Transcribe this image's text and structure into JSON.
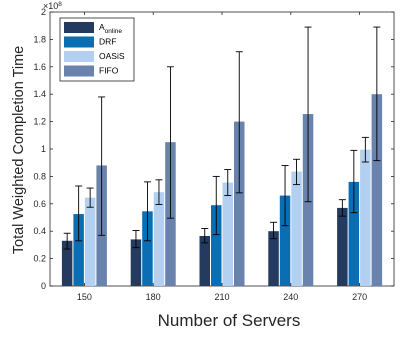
{
  "chart_data": {
    "type": "bar",
    "xlabel": "Number of Servers",
    "ylabel": "Total Weighted Completion Time",
    "ylim": [
      0,
      2
    ],
    "y_ticks": [
      "0",
      "0.2",
      "0.4",
      "0.6",
      "0.8",
      "1",
      "1.2",
      "1.4",
      "1.6",
      "1.8",
      "2"
    ],
    "y_exponent": {
      "base": "×10",
      "power": "8"
    },
    "categories": [
      "150",
      "180",
      "210",
      "240",
      "270"
    ],
    "legend_position": "top-left",
    "grid": false,
    "series": [
      {
        "name": "A",
        "name_subscript": "online",
        "color": "#243a5e",
        "values": [
          0.33,
          0.34,
          0.365,
          0.4,
          0.57
        ],
        "err_low": [
          0.27,
          0.28,
          0.315,
          0.345,
          0.51
        ],
        "err_high": [
          0.385,
          0.405,
          0.42,
          0.465,
          0.63
        ]
      },
      {
        "name": "DRF",
        "color": "#0a6eb4",
        "values": [
          0.525,
          0.545,
          0.59,
          0.66,
          0.76
        ],
        "err_low": [
          0.33,
          0.33,
          0.375,
          0.44,
          0.535
        ],
        "err_high": [
          0.73,
          0.76,
          0.8,
          0.88,
          0.99
        ]
      },
      {
        "name": "OASiS",
        "color": "#b4d0f0",
        "values": [
          0.645,
          0.685,
          0.755,
          0.835,
          0.995
        ],
        "err_low": [
          0.575,
          0.595,
          0.66,
          0.74,
          0.905
        ],
        "err_high": [
          0.715,
          0.775,
          0.85,
          0.925,
          1.085
        ]
      },
      {
        "name": "FIFO",
        "color": "#6a82ae",
        "values": [
          0.88,
          1.05,
          1.2,
          1.255,
          1.4
        ],
        "err_low": [
          0.37,
          0.495,
          0.68,
          0.615,
          0.915
        ],
        "err_high": [
          1.38,
          1.6,
          1.71,
          1.89,
          1.89
        ]
      }
    ]
  }
}
